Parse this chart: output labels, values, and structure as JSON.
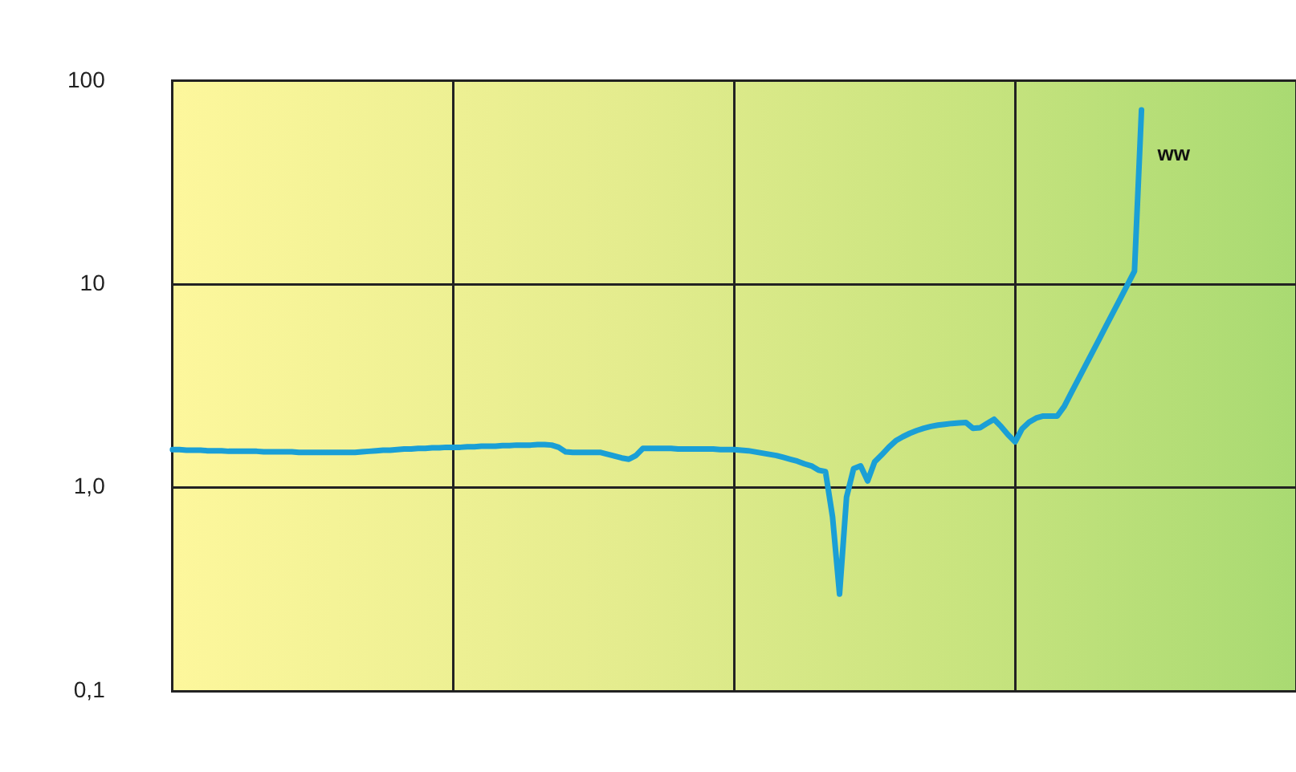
{
  "chart_data": {
    "type": "line",
    "log": "y",
    "grid": true,
    "tick_labels": "y",
    "marker": "none",
    "line_style": "solid",
    "legend": false,
    "categories": [
      null,
      null,
      null,
      null,
      null,
      null,
      null,
      null,
      null,
      null,
      null,
      null,
      null,
      null,
      null,
      null,
      null,
      null,
      null,
      null,
      null,
      null,
      null,
      null,
      null,
      null,
      null,
      null,
      null,
      null,
      null,
      null,
      null,
      null,
      null,
      null,
      null,
      null,
      null,
      null,
      null,
      null,
      null,
      null,
      null,
      null,
      null,
      null,
      null,
      null,
      null,
      null,
      null,
      null,
      null,
      null,
      null,
      null,
      null,
      null,
      null,
      null,
      null,
      null,
      null,
      null,
      null,
      null,
      null,
      null,
      null,
      null,
      null,
      null,
      null,
      null,
      null,
      null,
      null,
      null,
      null,
      null,
      null,
      null,
      null,
      null,
      null,
      null,
      null,
      null,
      null,
      null,
      null,
      null,
      null,
      null,
      null,
      null,
      null,
      null,
      null,
      null,
      null,
      null,
      null,
      null,
      null,
      null,
      null,
      null,
      null,
      null,
      null,
      null,
      null,
      null,
      null,
      null,
      null,
      null,
      null,
      null,
      null,
      null,
      null,
      null,
      null,
      null,
      null,
      null,
      null,
      null,
      null,
      null,
      null,
      null,
      null,
      null,
      null,
      null,
      null,
      null,
      null,
      null,
      null,
      null,
      null,
      null,
      null,
      null,
      null,
      null,
      null,
      null,
      null,
      null,
      null,
      null,
      null,
      null,
      null
    ],
    "ylim": [
      0.1,
      100
    ],
    "yticks": [
      {
        "value": 0.1,
        "label": "0,1"
      },
      {
        "value": 1,
        "label": "1,0"
      },
      10,
      100
    ],
    "annotations": [
      "ww"
    ],
    "series": [
      {
        "color": "#1a9fd6",
        "values": [
          1.54,
          1.54,
          1.53,
          1.53,
          1.53,
          1.52,
          1.52,
          1.52,
          1.51,
          1.51,
          1.51,
          1.51,
          1.51,
          1.5,
          1.5,
          1.5,
          1.5,
          1.5,
          1.49,
          1.49,
          1.49,
          1.49,
          1.49,
          1.49,
          1.49,
          1.49,
          1.49,
          1.5,
          1.51,
          1.52,
          1.53,
          1.53,
          1.54,
          1.55,
          1.55,
          1.56,
          1.56,
          1.57,
          1.57,
          1.58,
          1.58,
          1.58,
          1.59,
          1.59,
          1.6,
          1.6,
          1.6,
          1.61,
          1.61,
          1.62,
          1.62,
          1.62,
          1.63,
          1.63,
          1.62,
          1.58,
          1.5,
          1.49,
          1.49,
          1.49,
          1.49,
          1.49,
          1.46,
          1.43,
          1.4,
          1.38,
          1.44,
          1.56,
          1.56,
          1.56,
          1.56,
          1.56,
          1.55,
          1.55,
          1.55,
          1.55,
          1.55,
          1.55,
          1.54,
          1.54,
          1.54,
          1.53,
          1.52,
          1.5,
          1.48,
          1.46,
          1.44,
          1.41,
          1.38,
          1.35,
          1.31,
          1.28,
          1.22,
          1.2,
          0.72,
          0.3,
          0.9,
          1.24,
          1.28,
          1.08,
          1.34,
          1.45,
          1.58,
          1.7,
          1.78,
          1.85,
          1.91,
          1.96,
          2.0,
          2.03,
          2.05,
          2.07,
          2.08,
          2.09,
          1.96,
          1.97,
          2.07,
          2.17,
          2.0,
          1.82,
          1.68,
          1.95,
          2.1,
          2.2,
          2.25,
          2.25,
          2.25,
          2.51,
          2.93,
          3.41,
          3.97,
          4.63,
          5.39,
          6.28,
          7.32,
          8.53,
          9.94,
          11.6,
          72,
          null,
          null,
          null,
          null,
          null,
          null,
          null,
          null,
          null,
          null,
          null,
          null,
          null,
          null,
          null,
          null,
          null,
          null,
          null,
          null,
          null,
          null
        ]
      }
    ]
  }
}
